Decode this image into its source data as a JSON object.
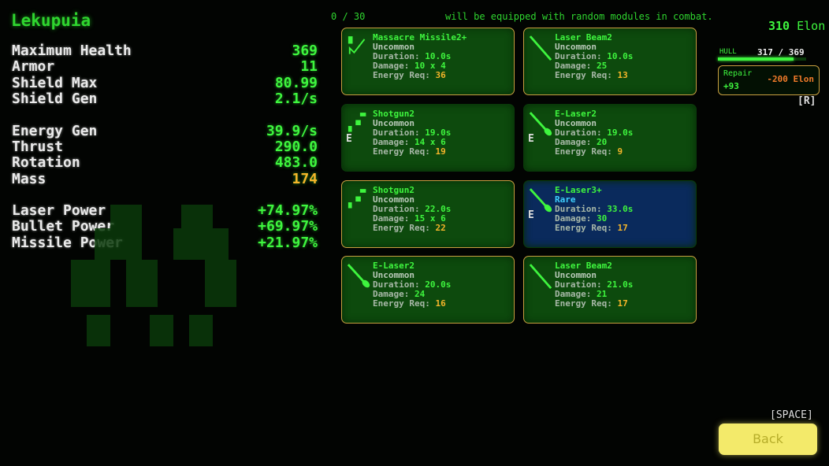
{
  "ship_name": "Lekupuia",
  "stats": [
    {
      "label": "Maximum Health",
      "value": "369",
      "color": "green"
    },
    {
      "label": "Armor",
      "value": "11",
      "color": "green"
    },
    {
      "label": "Shield Max",
      "value": "80.99",
      "color": "green"
    },
    {
      "label": "Shield Gen",
      "value": "2.1/s",
      "color": "green"
    },
    {
      "label": "Energy Gen",
      "value": "39.9/s",
      "color": "green"
    },
    {
      "label": "Thrust",
      "value": "290.0",
      "color": "green"
    },
    {
      "label": "Rotation",
      "value": "483.0",
      "color": "green"
    },
    {
      "label": "Mass",
      "value": "174",
      "color": "orange"
    },
    {
      "label": "Laser Power",
      "value": "+74.97%",
      "color": "green"
    },
    {
      "label": "Bullet Power",
      "value": "+69.97%",
      "color": "green"
    },
    {
      "label": "Missile Power",
      "value": "+21.97%",
      "color": "green"
    }
  ],
  "module_count": "0 / 30",
  "message": "will be equipped with random modules in combat.",
  "labels": {
    "duration": "Duration:",
    "damage": "Damage:",
    "energy": "Energy Req:"
  },
  "modules": [
    {
      "name": "Massacre Missile2+",
      "rarity": "Uncommon",
      "duration": "10.0s",
      "damage": "10 x 4",
      "energy": "36",
      "icon": "missile-icon",
      "equipped_marker": "",
      "selected": true
    },
    {
      "name": "Laser Beam2",
      "rarity": "Uncommon",
      "duration": "10.0s",
      "damage": "25",
      "energy": "13",
      "icon": "laser-beam-icon",
      "equipped_marker": "",
      "selected": true
    },
    {
      "name": "Shotgun2",
      "rarity": "Uncommon",
      "duration": "19.0s",
      "damage": "14 x 6",
      "energy": "19",
      "icon": "shotgun-icon",
      "equipped_marker": "E",
      "selected": false
    },
    {
      "name": "E-Laser2",
      "rarity": "Uncommon",
      "duration": "19.0s",
      "damage": "20",
      "energy": "9",
      "icon": "e-laser-icon",
      "equipped_marker": "E",
      "selected": false
    },
    {
      "name": "Shotgun2",
      "rarity": "Uncommon",
      "duration": "22.0s",
      "damage": "15 x 6",
      "energy": "22",
      "icon": "shotgun-icon",
      "equipped_marker": "",
      "selected": true
    },
    {
      "name": "E-Laser3+",
      "rarity": "Rare",
      "duration": "33.0s",
      "damage": "30",
      "energy": "17",
      "icon": "e-laser-icon",
      "equipped_marker": "E",
      "selected": false
    },
    {
      "name": "E-Laser2",
      "rarity": "Uncommon",
      "duration": "20.0s",
      "damage": "24",
      "energy": "16",
      "icon": "e-laser-icon",
      "equipped_marker": "",
      "selected": true
    },
    {
      "name": "Laser Beam2",
      "rarity": "Uncommon",
      "duration": "21.0s",
      "damage": "21",
      "energy": "17",
      "icon": "laser-beam-icon",
      "equipped_marker": "",
      "selected": true
    }
  ],
  "credits": {
    "amount": "310",
    "unit": "Elon"
  },
  "hull": {
    "label": "HULL",
    "value": "317 / 369",
    "fraction": 0.859
  },
  "repair": {
    "label": "Repair",
    "amount": "+93",
    "cost": "-200 Elon",
    "key": "[R]"
  },
  "back": {
    "label": "Back",
    "key": "[SPACE]"
  },
  "colors": {
    "green": "#3ef53e",
    "orange": "#f5b52a",
    "card": "#0d4a0d",
    "rare_card": "#0a2a5c",
    "back_button": "#f3ea6a"
  }
}
